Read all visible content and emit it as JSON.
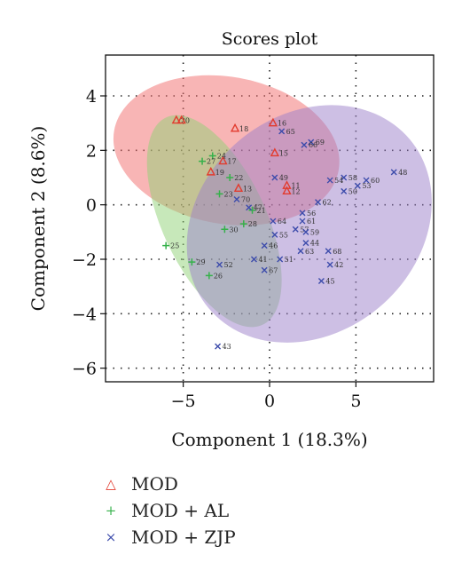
{
  "chart_data": {
    "type": "scatter",
    "title": "Scores plot",
    "xlabel": "Component 1 (18.3%)",
    "ylabel": "Component 2 (8.6%)",
    "xlim": [
      -9.5,
      9.5
    ],
    "ylim": [
      -6.5,
      5.5
    ],
    "xticks": [
      -5,
      0,
      5
    ],
    "yticks": [
      4,
      2,
      0,
      -2,
      -4,
      -6
    ],
    "xtick_labels": [
      "−5",
      "0",
      "5"
    ],
    "ytick_labels": [
      "4",
      "2",
      "0",
      "−2",
      "−4",
      "−6"
    ],
    "grid": true,
    "legend_position": "below",
    "series": [
      {
        "name": "MOD",
        "marker": "triangle",
        "color": "#e23b2e",
        "ellipse_color": "#f26b6b",
        "ellipse": {
          "cx": -2.5,
          "cy": 2.0,
          "rx": 6.6,
          "ry": 2.7,
          "angle": -10
        },
        "points": [
          {
            "label": "20",
            "x": -5.4,
            "y": 3.1
          },
          {
            "label": "",
            "x": -5.1,
            "y": 3.1
          },
          {
            "label": "18",
            "x": -2.0,
            "y": 2.8
          },
          {
            "label": "16",
            "x": 0.2,
            "y": 3.0
          },
          {
            "label": "17",
            "x": -2.7,
            "y": 1.6
          },
          {
            "label": "15",
            "x": 0.3,
            "y": 1.9
          },
          {
            "label": "19",
            "x": -3.4,
            "y": 1.2
          },
          {
            "label": "13",
            "x": -1.8,
            "y": 0.6
          },
          {
            "label": "11",
            "x": 1.0,
            "y": 0.7
          },
          {
            "label": "12",
            "x": 1.0,
            "y": 0.5
          }
        ]
      },
      {
        "name": "MOD + AL",
        "marker": "plus",
        "color": "#35b14a",
        "ellipse_color": "#8fd276",
        "ellipse": {
          "cx": -3.2,
          "cy": -0.6,
          "rx": 3.0,
          "ry": 4.2,
          "angle": 25
        },
        "points": [
          {
            "label": "24",
            "x": -3.3,
            "y": 1.8
          },
          {
            "label": "27",
            "x": -3.9,
            "y": 1.6
          },
          {
            "label": "22",
            "x": -2.3,
            "y": 1.0
          },
          {
            "label": "23",
            "x": -2.9,
            "y": 0.4
          },
          {
            "label": "21",
            "x": -1.0,
            "y": -0.2
          },
          {
            "label": "28",
            "x": -1.5,
            "y": -0.7
          },
          {
            "label": "30",
            "x": -2.6,
            "y": -0.9
          },
          {
            "label": "25",
            "x": -6.0,
            "y": -1.5
          },
          {
            "label": "29",
            "x": -4.5,
            "y": -2.1
          },
          {
            "label": "26",
            "x": -3.5,
            "y": -2.6
          }
        ]
      },
      {
        "name": "MOD + ZJP",
        "marker": "x",
        "color": "#3c4bab",
        "ellipse_color": "#9c80c9",
        "ellipse": {
          "cx": 2.3,
          "cy": -0.7,
          "rx": 7.6,
          "ry": 4.0,
          "angle": 40
        },
        "points": [
          {
            "label": "65",
            "x": 0.7,
            "y": 2.7
          },
          {
            "label": "69",
            "x": 2.4,
            "y": 2.3
          },
          {
            "label": "66",
            "x": 2.0,
            "y": 2.2
          },
          {
            "label": "48",
            "x": 7.2,
            "y": 1.2
          },
          {
            "label": "60",
            "x": 5.6,
            "y": 0.9
          },
          {
            "label": "58",
            "x": 4.3,
            "y": 1.0
          },
          {
            "label": "54",
            "x": 3.5,
            "y": 0.9
          },
          {
            "label": "53",
            "x": 5.1,
            "y": 0.7
          },
          {
            "label": "50",
            "x": 4.3,
            "y": 0.5
          },
          {
            "label": "49",
            "x": 0.3,
            "y": 1.0
          },
          {
            "label": "70",
            "x": -1.9,
            "y": 0.2
          },
          {
            "label": "47",
            "x": -1.2,
            "y": -0.1
          },
          {
            "label": "62",
            "x": 2.8,
            "y": 0.1
          },
          {
            "label": "56",
            "x": 1.9,
            "y": -0.3
          },
          {
            "label": "61",
            "x": 1.9,
            "y": -0.6
          },
          {
            "label": "64",
            "x": 0.2,
            "y": -0.6
          },
          {
            "label": "57",
            "x": 1.5,
            "y": -0.9
          },
          {
            "label": "55",
            "x": 0.3,
            "y": -1.1
          },
          {
            "label": "59",
            "x": 2.1,
            "y": -1.0
          },
          {
            "label": "44",
            "x": 2.1,
            "y": -1.4
          },
          {
            "label": "46",
            "x": -0.3,
            "y": -1.5
          },
          {
            "label": "63",
            "x": 1.8,
            "y": -1.7
          },
          {
            "label": "68",
            "x": 3.4,
            "y": -1.7
          },
          {
            "label": "41",
            "x": -0.9,
            "y": -2.0
          },
          {
            "label": "51",
            "x": 0.6,
            "y": -2.0
          },
          {
            "label": "42",
            "x": 3.5,
            "y": -2.2
          },
          {
            "label": "52",
            "x": -2.9,
            "y": -2.2
          },
          {
            "label": "67",
            "x": -0.3,
            "y": -2.4
          },
          {
            "label": "45",
            "x": 3.0,
            "y": -2.8
          },
          {
            "label": "43",
            "x": -3.0,
            "y": -5.2
          }
        ]
      }
    ]
  }
}
